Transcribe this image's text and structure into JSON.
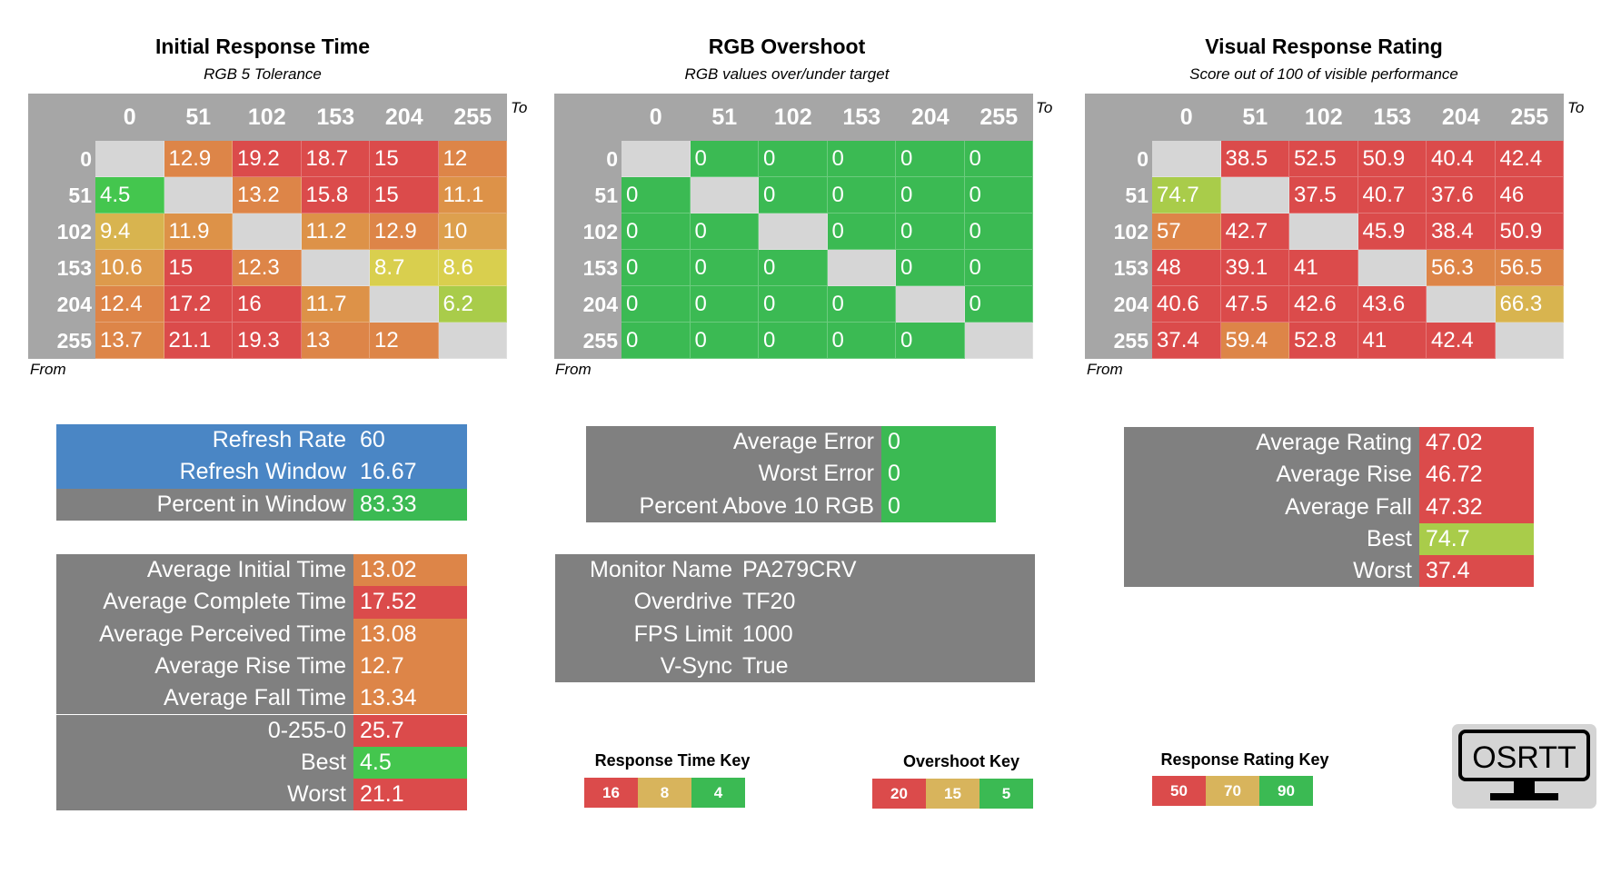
{
  "colors": {
    "grey": "#808080",
    "header_grey": "#a6a6a6",
    "diag": "#d6d6d6",
    "blue": "#4a86c5",
    "red": "#db4b4b",
    "orange": "#dd8548",
    "amber": "#d8a552",
    "yellow": "#d9cf4e",
    "lime": "#a9cc4a",
    "green": "#3bba53"
  },
  "chart_data": [
    {
      "type": "heatmap",
      "title": "Initial Response Time",
      "subtitle": "RGB 5 Tolerance",
      "to_label": "To",
      "from_label": "From",
      "columns": [
        "0",
        "51",
        "102",
        "153",
        "204",
        "255"
      ],
      "rows": [
        "0",
        "51",
        "102",
        "153",
        "204",
        "255"
      ],
      "values": [
        [
          null,
          12.9,
          19.2,
          18.7,
          15,
          12
        ],
        [
          4.5,
          null,
          13.2,
          15.8,
          15,
          11.1
        ],
        [
          9.4,
          11.9,
          null,
          11.2,
          12.9,
          10
        ],
        [
          10.6,
          15,
          12.3,
          null,
          8.7,
          8.6
        ],
        [
          12.4,
          17.2,
          16,
          11.7,
          null,
          6.2
        ],
        [
          13.7,
          21.1,
          19.3,
          13,
          12,
          null
        ]
      ],
      "colors": [
        [
          null,
          "#dd8548",
          "#db4b4b",
          "#db4b4b",
          "#db4b4b",
          "#dd8548"
        ],
        [
          "#44c64e",
          null,
          "#dd8548",
          "#db4b4b",
          "#db4b4b",
          "#dd9248"
        ],
        [
          "#d8b44f",
          "#dd9248",
          null,
          "#dd9248",
          "#dd8548",
          "#dda04e"
        ],
        [
          "#dd9a4c",
          "#db4b4b",
          "#dd8548",
          null,
          "#d9cf4e",
          "#d9cf4e"
        ],
        [
          "#dd8548",
          "#db4b4b",
          "#db4b4b",
          "#dd9248",
          null,
          "#a9cc4a"
        ],
        [
          "#dd8548",
          "#db4b4b",
          "#db4b4b",
          "#dd8548",
          "#dd8548",
          null
        ]
      ]
    },
    {
      "type": "heatmap",
      "title": "RGB Overshoot",
      "subtitle": "RGB values over/under target",
      "to_label": "To",
      "from_label": "From",
      "columns": [
        "0",
        "51",
        "102",
        "153",
        "204",
        "255"
      ],
      "rows": [
        "0",
        "51",
        "102",
        "153",
        "204",
        "255"
      ],
      "values": [
        [
          null,
          0,
          0,
          0,
          0,
          0
        ],
        [
          0,
          null,
          0,
          0,
          0,
          0
        ],
        [
          0,
          0,
          null,
          0,
          0,
          0
        ],
        [
          0,
          0,
          0,
          null,
          0,
          0
        ],
        [
          0,
          0,
          0,
          0,
          null,
          0
        ],
        [
          0,
          0,
          0,
          0,
          0,
          null
        ]
      ],
      "colors": "green"
    },
    {
      "type": "heatmap",
      "title": "Visual Response Rating",
      "subtitle": "Score out of 100 of visible performance",
      "to_label": "To",
      "from_label": "From",
      "columns": [
        "0",
        "51",
        "102",
        "153",
        "204",
        "255"
      ],
      "rows": [
        "0",
        "51",
        "102",
        "153",
        "204",
        "255"
      ],
      "values": [
        [
          null,
          38.5,
          52.5,
          50.9,
          40.4,
          42.4
        ],
        [
          74.7,
          null,
          37.5,
          40.7,
          37.6,
          46
        ],
        [
          57,
          42.7,
          null,
          45.9,
          38.4,
          50.9
        ],
        [
          48,
          39.1,
          41,
          null,
          56.3,
          56.5
        ],
        [
          40.6,
          47.5,
          42.6,
          43.6,
          null,
          66.3
        ],
        [
          37.4,
          59.4,
          52.8,
          41,
          42.4,
          null
        ]
      ],
      "colors": [
        [
          null,
          "#db4b4b",
          "#db4b4b",
          "#db4b4b",
          "#db4b4b",
          "#db4b4b"
        ],
        [
          "#a9cc4a",
          null,
          "#db4b4b",
          "#db4b4b",
          "#db4b4b",
          "#db4b4b"
        ],
        [
          "#dd8548",
          "#db4b4b",
          null,
          "#db4b4b",
          "#db4b4b",
          "#db4b4b"
        ],
        [
          "#db4b4b",
          "#db4b4b",
          "#db4b4b",
          null,
          "#dd8548",
          "#dd8548"
        ],
        [
          "#db4b4b",
          "#db4b4b",
          "#db4b4b",
          "#db4b4b",
          null,
          "#d8b44f"
        ],
        [
          "#db4b4b",
          "#dd8548",
          "#db4b4b",
          "#db4b4b",
          "#db4b4b",
          null
        ]
      ]
    }
  ],
  "refresh": [
    {
      "label": "Refresh Rate",
      "value": "60",
      "bg": "#4a86c5",
      "vbg": "#4a86c5"
    },
    {
      "label": "Refresh Window",
      "value": "16.67",
      "bg": "#4a86c5",
      "vbg": "#4a86c5"
    },
    {
      "label": "Percent in Window",
      "value": "83.33",
      "bg": "#808080",
      "vbg": "#3bba53"
    }
  ],
  "times": [
    {
      "label": "Average Initial Time",
      "value": "13.02",
      "vbg": "#dd8548"
    },
    {
      "label": "Average Complete Time",
      "value": "17.52",
      "vbg": "#db4b4b"
    },
    {
      "label": "Average Perceived Time",
      "value": "13.08",
      "vbg": "#dd8548"
    },
    {
      "label": "Average Rise Time",
      "value": "12.7",
      "vbg": "#dd8548"
    },
    {
      "label": "Average Fall Time",
      "value": "13.34",
      "vbg": "#dd8548"
    },
    {
      "label": "0-255-0",
      "value": "25.7",
      "vbg": "#db4b4b"
    },
    {
      "label": "Best",
      "value": "4.5",
      "vbg": "#44c64e"
    },
    {
      "label": "Worst",
      "value": "21.1",
      "vbg": "#db4b4b"
    }
  ],
  "errors": [
    {
      "label": "Average Error",
      "value": "0",
      "vbg": "#3bba53"
    },
    {
      "label": "Worst Error",
      "value": "0",
      "vbg": "#3bba53"
    },
    {
      "label": "Percent Above 10 RGB",
      "value": "0",
      "vbg": "#3bba53"
    }
  ],
  "monitor": [
    {
      "label": "Monitor Name",
      "value": "PA279CRV"
    },
    {
      "label": "Overdrive",
      "value": "TF20"
    },
    {
      "label": "FPS Limit",
      "value": "1000"
    },
    {
      "label": "V-Sync",
      "value": "True"
    }
  ],
  "ratings": [
    {
      "label": "Average Rating",
      "value": "47.02",
      "vbg": "#db4b4b"
    },
    {
      "label": "Average Rise",
      "value": "46.72",
      "vbg": "#db4b4b"
    },
    {
      "label": "Average Fall",
      "value": "47.32",
      "vbg": "#db4b4b"
    },
    {
      "label": "Best",
      "value": "74.7",
      "vbg": "#a9cc4a"
    },
    {
      "label": "Worst",
      "value": "37.4",
      "vbg": "#db4b4b"
    }
  ],
  "keys": [
    {
      "title": "Response Time Key",
      "items": [
        {
          "v": "16",
          "c": "#db4b4b"
        },
        {
          "v": "8",
          "c": "#d8b45c"
        },
        {
          "v": "4",
          "c": "#3bba53"
        }
      ]
    },
    {
      "title": "Overshoot Key",
      "items": [
        {
          "v": "20",
          "c": "#db4b4b"
        },
        {
          "v": "15",
          "c": "#d8b45c"
        },
        {
          "v": "5",
          "c": "#3bba53"
        }
      ]
    },
    {
      "title": "Response Rating Key",
      "items": [
        {
          "v": "50",
          "c": "#db4b4b"
        },
        {
          "v": "70",
          "c": "#d8b45c"
        },
        {
          "v": "90",
          "c": "#3bba53"
        }
      ]
    }
  ],
  "logo": {
    "text": "OSRTT",
    "icon": "monitor-logo-icon"
  }
}
